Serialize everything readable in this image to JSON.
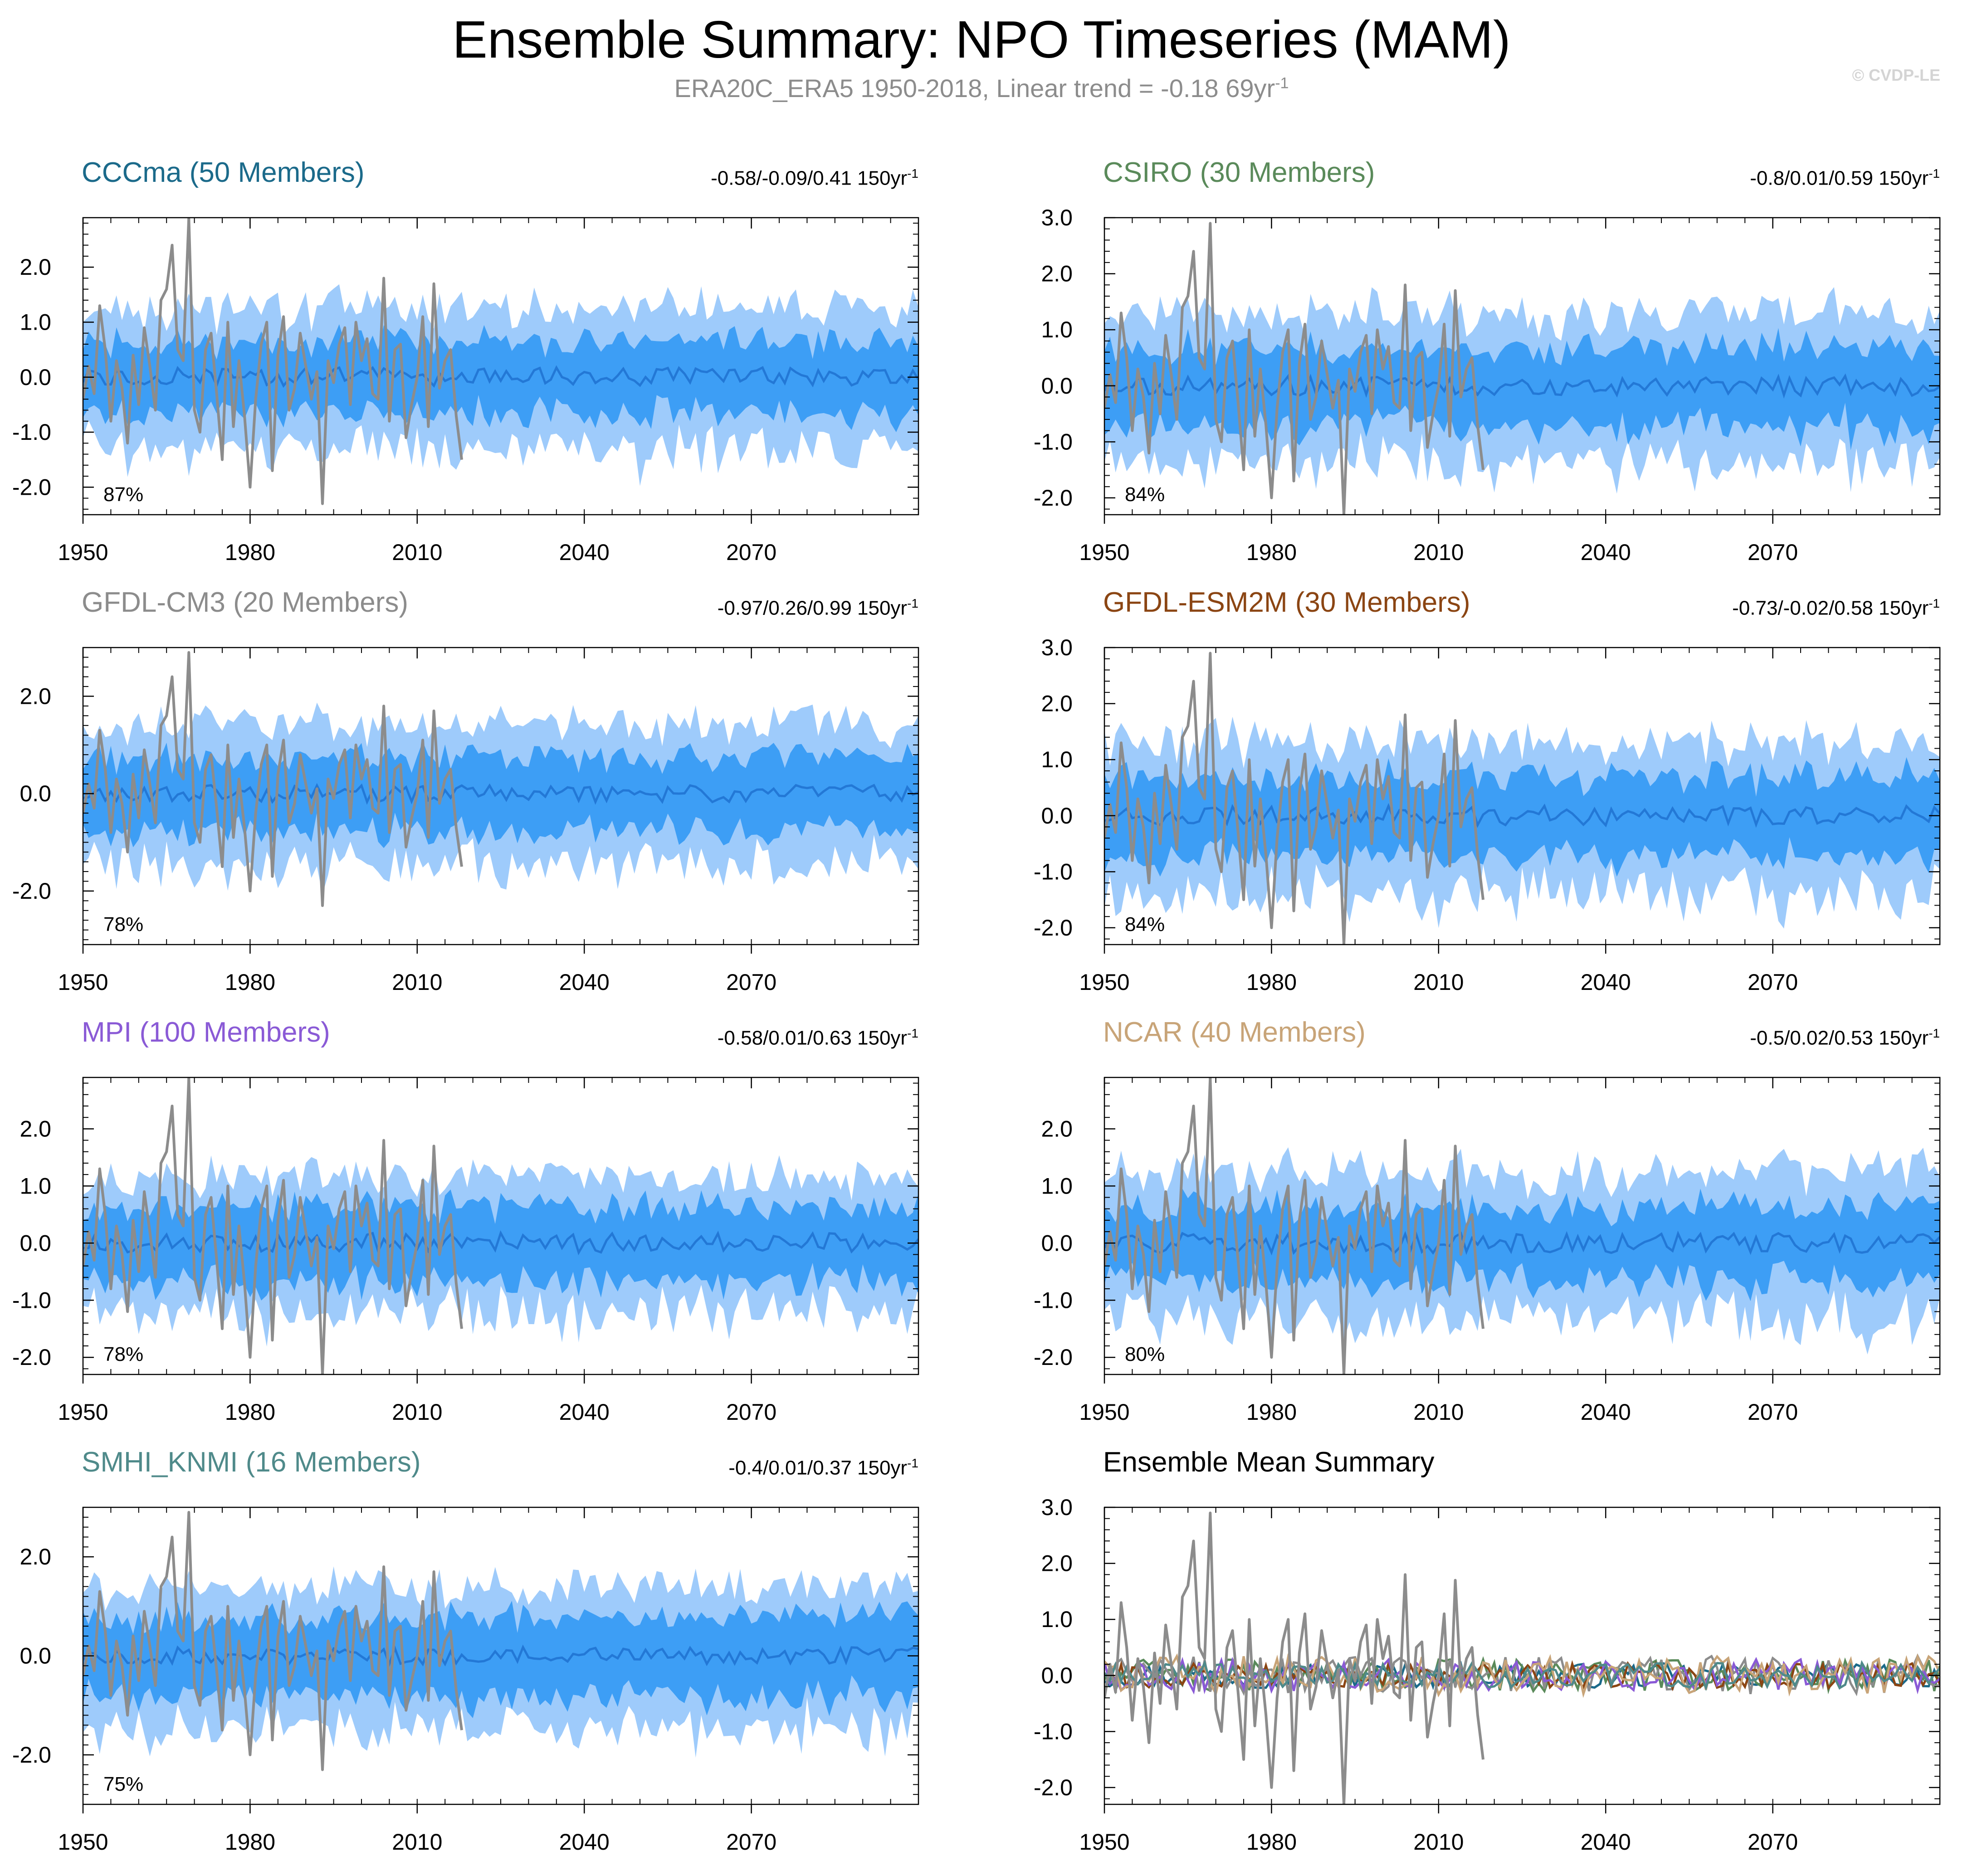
{
  "header": {
    "title": "Ensemble Summary: NPO Timeseries (MAM)",
    "subtitle": "ERA20C_ERA5 1950-2018, Linear trend = -0.18 69yr",
    "subtitle_sup": "-1",
    "watermark": "© CVDP-LE"
  },
  "colors": {
    "outer_band": "#9ecbfb",
    "inner_band": "#3d9ef5",
    "ensemble_mean": "#2378d6",
    "observations": "#8c8c8c",
    "axis": "#000000"
  },
  "chart_data": [
    {
      "type": "area",
      "title": "CCCma (50 Members)",
      "title_color": "#1b6a8a",
      "range_text": "-0.58/-0.09/0.41 150yr",
      "range_sup": "-1",
      "pct_label": "87%",
      "x_range": [
        1950,
        2100
      ],
      "ylim": [
        -2.5,
        2.9
      ],
      "ytick_labels": [
        "2.0",
        "1.0",
        "0.0",
        "-1.0",
        "-2.0"
      ],
      "xtick_labels": [
        "1950",
        "1980",
        "2010",
        "2040",
        "2070"
      ],
      "outer_spread": 1.15,
      "inner_spread": 0.6,
      "seed": 11
    },
    {
      "type": "area",
      "title": "CSIRO (30 Members)",
      "title_color": "#5a8a5a",
      "range_text": "-0.8/0.01/0.59 150yr",
      "range_sup": "-1",
      "pct_label": "84%",
      "x_range": [
        1950,
        2100
      ],
      "ylim": [
        -2.3,
        3.0
      ],
      "ytick_labels": [
        "3.0",
        "2.0",
        "1.0",
        "0.0",
        "-1.0",
        "-2.0"
      ],
      "xtick_labels": [
        "1950",
        "1980",
        "2010",
        "2040",
        "2070"
      ],
      "outer_spread": 1.2,
      "inner_spread": 0.65,
      "seed": 23
    },
    {
      "type": "area",
      "title": "GFDL-CM3 (20 Members)",
      "title_color": "#8c8c8c",
      "range_text": "-0.97/0.26/0.99 150yr",
      "range_sup": "-1",
      "pct_label": "78%",
      "x_range": [
        1950,
        2100
      ],
      "ylim": [
        -3.1,
        3.0
      ],
      "ytick_labels": [
        "2.0",
        "0.0",
        "-2.0"
      ],
      "xtick_labels": [
        "1950",
        "1980",
        "2010",
        "2040",
        "2070"
      ],
      "outer_spread": 1.3,
      "inner_spread": 0.7,
      "seed": 37
    },
    {
      "type": "area",
      "title": "GFDL-ESM2M (30 Members)",
      "title_color": "#8b4513",
      "range_text": "-0.73/-0.02/0.58 150yr",
      "range_sup": "-1",
      "pct_label": "84%",
      "x_range": [
        1950,
        2100
      ],
      "ylim": [
        -2.3,
        3.0
      ],
      "ytick_labels": [
        "3.0",
        "2.0",
        "1.0",
        "0.0",
        "-1.0",
        "-2.0"
      ],
      "xtick_labels": [
        "1950",
        "1980",
        "2010",
        "2040",
        "2070"
      ],
      "outer_spread": 1.2,
      "inner_spread": 0.65,
      "seed": 41
    },
    {
      "type": "area",
      "title": "MPI (100 Members)",
      "title_color": "#8a5ad6",
      "range_text": "-0.58/0.01/0.63 150yr",
      "range_sup": "-1",
      "pct_label": "78%",
      "x_range": [
        1950,
        2100
      ],
      "ylim": [
        -2.3,
        2.9
      ],
      "ytick_labels": [
        "2.0",
        "1.0",
        "0.0",
        "-1.0",
        "-2.0"
      ],
      "xtick_labels": [
        "1950",
        "1980",
        "2010",
        "2040",
        "2070"
      ],
      "outer_spread": 1.1,
      "inner_spread": 0.6,
      "seed": 53
    },
    {
      "type": "area",
      "title": "NCAR (40 Members)",
      "title_color": "#c8a478",
      "range_text": "-0.5/0.02/0.53 150yr",
      "range_sup": "-1",
      "pct_label": "80%",
      "x_range": [
        1950,
        2100
      ],
      "ylim": [
        -2.3,
        2.9
      ],
      "ytick_labels": [
        "2.0",
        "1.0",
        "0.0",
        "-1.0",
        "-2.0"
      ],
      "xtick_labels": [
        "1950",
        "1980",
        "2010",
        "2040",
        "2070"
      ],
      "outer_spread": 1.15,
      "inner_spread": 0.6,
      "seed": 67
    },
    {
      "type": "area",
      "title": "SMHI_KNMI (16 Members)",
      "title_color": "#4f8a8a",
      "range_text": "-0.4/0.01/0.37 150yr",
      "range_sup": "-1",
      "pct_label": "75%",
      "x_range": [
        1950,
        2100
      ],
      "ylim": [
        -3.0,
        3.0
      ],
      "ytick_labels": [
        "2.0",
        "0.0",
        "-2.0"
      ],
      "xtick_labels": [
        "1950",
        "1980",
        "2010",
        "2040",
        "2070"
      ],
      "outer_spread": 1.3,
      "inner_spread": 0.75,
      "seed": 79
    },
    {
      "type": "line",
      "title": "Ensemble Mean Summary",
      "title_color": "#000000",
      "range_text": "",
      "range_sup": "",
      "pct_label": "",
      "x_range": [
        1950,
        2100
      ],
      "ylim": [
        -2.3,
        3.0
      ],
      "ytick_labels": [
        "3.0",
        "2.0",
        "1.0",
        "0.0",
        "-1.0",
        "-2.0"
      ],
      "xtick_labels": [
        "1950",
        "1980",
        "2010",
        "2040",
        "2070"
      ],
      "series_colors": [
        "#1b6a8a",
        "#5a8a5a",
        "#8c8c8c",
        "#8b4513",
        "#8a5ad6",
        "#c8a478",
        "#4f8a8a"
      ],
      "seed": 97
    }
  ],
  "observations": {
    "name": "ERA20C_ERA5",
    "years": [
      1950,
      2018
    ],
    "values": [
      -0.4,
      0.2,
      -0.3,
      1.3,
      0.5,
      -0.8,
      0.3,
      -0.2,
      -1.2,
      0.4,
      -0.5,
      0.9,
      0.2,
      -0.6,
      1.4,
      1.6,
      2.4,
      0.5,
      0.3,
      2.9,
      -0.6,
      -1.0,
      0.5,
      0.8,
      -0.3,
      -1.5,
      1.0,
      -0.9,
      0.3,
      -0.7,
      -2.0,
      -0.4,
      0.6,
      1.0,
      -1.7,
      0.4,
      1.1,
      -0.6,
      -0.2,
      0.8,
      0.2,
      -0.4,
      0.1,
      -2.3,
      0.3,
      -0.1,
      0.6,
      0.9,
      -0.5,
      1.0,
      0.3,
      0.7,
      -0.3,
      -0.4,
      1.8,
      -0.8,
      0.5,
      0.6,
      -1.1,
      -0.5,
      0.0,
      1.1,
      -0.9,
      1.7,
      -0.2,
      0.3,
      0.5,
      -0.7,
      -1.5
    ]
  }
}
